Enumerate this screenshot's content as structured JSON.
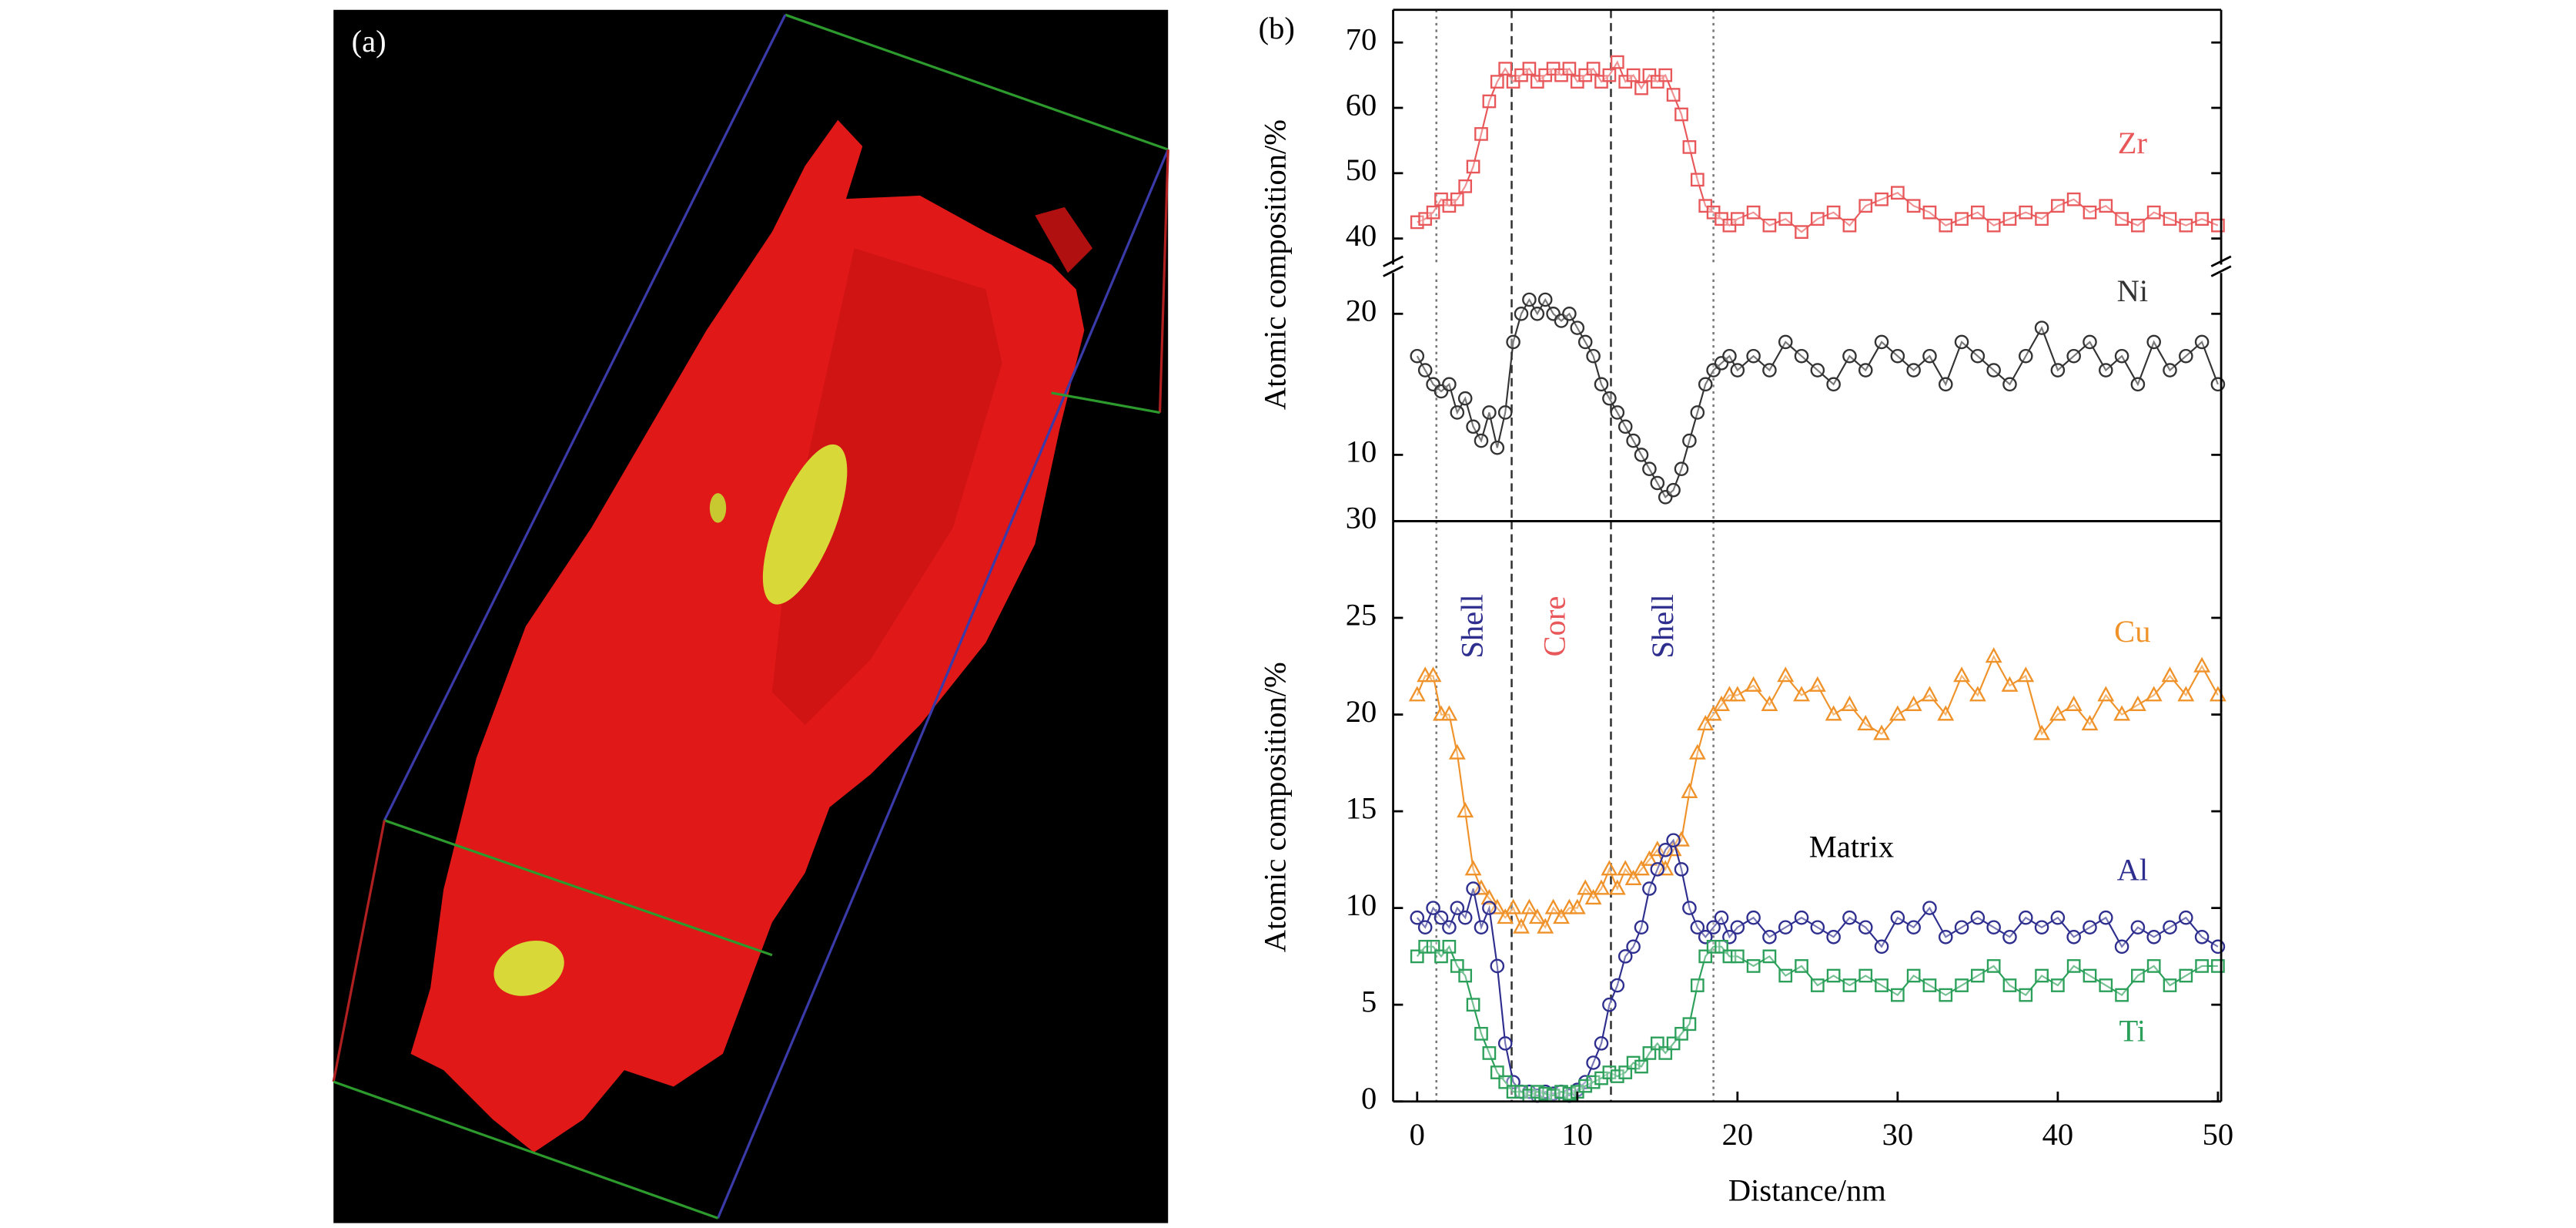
{
  "panel_a": {
    "label": "(a)"
  },
  "panel_b": {
    "label": "(b)"
  },
  "chart_data": [
    {
      "type": "line",
      "ylabel": "Atomic composition/%",
      "x": [
        0,
        0.5,
        1,
        1.5,
        2,
        2.5,
        3,
        3.5,
        4,
        4.5,
        5,
        5.5,
        6,
        6.5,
        7,
        7.5,
        8,
        8.5,
        9,
        9.5,
        10,
        10.5,
        11,
        11.5,
        12,
        12.5,
        13,
        13.5,
        14,
        14.5,
        15,
        15.5,
        16,
        16.5,
        17,
        17.5,
        18,
        18.5,
        19,
        19.5,
        20,
        21,
        22,
        23,
        24,
        25,
        26,
        27,
        28,
        29,
        30,
        31,
        32,
        33,
        34,
        35,
        36,
        37,
        38,
        39,
        40,
        41,
        42,
        43,
        44,
        45,
        46,
        47,
        48,
        49,
        50
      ],
      "xlim": [
        -1.5,
        50.2
      ],
      "ylim": [
        36,
        75
      ],
      "yticks": [
        40,
        50,
        60,
        70
      ],
      "vlines": [
        1.2,
        5.9,
        12.1,
        18.5
      ],
      "vline_styles": [
        "dotted",
        "dashed",
        "dashed",
        "dotted"
      ],
      "series": [
        {
          "name": "Zr",
          "color": "#e8585a",
          "marker": "square",
          "values": [
            42.5,
            43,
            44,
            46,
            45,
            46,
            48,
            51,
            56,
            61,
            64,
            66,
            64,
            65,
            66,
            64,
            65,
            66,
            65,
            66,
            64,
            65,
            66,
            64,
            65,
            67,
            64,
            65,
            63,
            65,
            64,
            65,
            62,
            59,
            54,
            49,
            45,
            44,
            43,
            42,
            43,
            44,
            42,
            43,
            41,
            43,
            44,
            42,
            45,
            46,
            47,
            45,
            44,
            42,
            43,
            44,
            42,
            43,
            44,
            43,
            45,
            46,
            44,
            45,
            43,
            42,
            44,
            43,
            42,
            43,
            42
          ]
        }
      ]
    },
    {
      "type": "line",
      "x": [
        0,
        0.5,
        1,
        1.5,
        2,
        2.5,
        3,
        3.5,
        4,
        4.5,
        5,
        5.5,
        6,
        6.5,
        7,
        7.5,
        8,
        8.5,
        9,
        9.5,
        10,
        10.5,
        11,
        11.5,
        12,
        12.5,
        13,
        13.5,
        14,
        14.5,
        15,
        15.5,
        16,
        16.5,
        17,
        17.5,
        18,
        18.5,
        19,
        19.5,
        20,
        21,
        22,
        23,
        24,
        25,
        26,
        27,
        28,
        29,
        30,
        31,
        32,
        33,
        34,
        35,
        36,
        37,
        38,
        39,
        40,
        41,
        42,
        43,
        44,
        45,
        46,
        47,
        48,
        49,
        50
      ],
      "xlim": [
        -1.5,
        50.2
      ],
      "ylim": [
        5.3,
        22.9
      ],
      "yticks": [
        10,
        20
      ],
      "vlines": [
        1.2,
        5.9,
        12.1,
        18.5
      ],
      "vline_styles": [
        "dotted",
        "dashed",
        "dashed",
        "dotted"
      ],
      "series": [
        {
          "name": "Ni",
          "color": "#333333",
          "marker": "circle",
          "values": [
            17,
            16,
            15,
            14.5,
            15,
            13,
            14,
            12,
            11,
            13,
            10.5,
            13,
            18,
            20,
            21,
            20,
            21,
            20,
            19.5,
            20,
            19,
            18,
            17,
            15,
            14,
            13,
            12,
            11,
            10,
            9,
            8,
            7,
            7.5,
            9,
            11,
            13,
            15,
            16,
            16.5,
            17,
            16,
            17,
            16,
            18,
            17,
            16,
            15,
            17,
            16,
            18,
            17,
            16,
            17,
            15,
            18,
            17,
            16,
            15,
            17,
            19,
            16,
            17,
            18,
            16,
            17,
            15,
            18,
            16,
            17,
            18,
            15
          ]
        }
      ]
    },
    {
      "type": "line",
      "ylabel": "Atomic composition/%",
      "xlabel": "Distance/nm",
      "x": [
        0,
        0.5,
        1,
        1.5,
        2,
        2.5,
        3,
        3.5,
        4,
        4.5,
        5,
        5.5,
        6,
        6.5,
        7,
        7.5,
        8,
        8.5,
        9,
        9.5,
        10,
        10.5,
        11,
        11.5,
        12,
        12.5,
        13,
        13.5,
        14,
        14.5,
        15,
        15.5,
        16,
        16.5,
        17,
        17.5,
        18,
        18.5,
        19,
        19.5,
        20,
        21,
        22,
        23,
        24,
        25,
        26,
        27,
        28,
        29,
        30,
        31,
        32,
        33,
        34,
        35,
        36,
        37,
        38,
        39,
        40,
        41,
        42,
        43,
        44,
        45,
        46,
        47,
        48,
        49,
        50
      ],
      "xlim": [
        -1.5,
        50.2
      ],
      "ylim": [
        0,
        30
      ],
      "xticks": [
        0,
        10,
        20,
        30,
        40,
        50
      ],
      "yticks": [
        0,
        5,
        10,
        15,
        20,
        25,
        30
      ],
      "vlines": [
        1.2,
        5.9,
        12.1,
        18.5
      ],
      "vline_styles": [
        "dotted",
        "dashed",
        "dashed",
        "dotted"
      ],
      "annotations": [
        {
          "text": "Shell",
          "color": "#2e2e8f"
        },
        {
          "text": "Core",
          "color": "#e8585a"
        },
        {
          "text": "Shell",
          "color": "#2e2e8f"
        },
        {
          "text": "Matrix",
          "color": "#000000"
        }
      ],
      "series": [
        {
          "name": "Cu",
          "color": "#f0922a",
          "marker": "triangle",
          "values": [
            21,
            22,
            22,
            20,
            20,
            18,
            15,
            12,
            11,
            10.5,
            10,
            9.5,
            10,
            9,
            10,
            9.5,
            9,
            10,
            9.5,
            10,
            10,
            11,
            10.5,
            11,
            12,
            11,
            12,
            11.5,
            12,
            12.5,
            13,
            12,
            13,
            13.5,
            16,
            18,
            19.5,
            20,
            20.5,
            21,
            21,
            21.5,
            20.5,
            22,
            21,
            21.5,
            20,
            20.5,
            19.5,
            19,
            20,
            20.5,
            21,
            20,
            22,
            21,
            23,
            21.5,
            22,
            19,
            20,
            20.5,
            19.5,
            21,
            20,
            20.5,
            21,
            22,
            21,
            22.5,
            21
          ]
        },
        {
          "name": "Al",
          "color": "#2e2e8f",
          "marker": "circle",
          "values": [
            9.5,
            9,
            10,
            9.5,
            9,
            10,
            9.5,
            11,
            9,
            10,
            7,
            3,
            1,
            0.5,
            0.5,
            0.3,
            0.5,
            0.4,
            0.5,
            0.3,
            0.6,
            1,
            2,
            3,
            5,
            6,
            7.5,
            8,
            9,
            11,
            12,
            13,
            13.5,
            12,
            10,
            9,
            8.5,
            9,
            9.5,
            8.5,
            9,
            9.5,
            8.5,
            9,
            9.5,
            9,
            8.5,
            9.5,
            9,
            8,
            9.5,
            9,
            10,
            8.5,
            9,
            9.5,
            9,
            8.5,
            9.5,
            9,
            9.5,
            8.5,
            9,
            9.5,
            8,
            9,
            8.5,
            9,
            9.5,
            8.5,
            8
          ]
        },
        {
          "name": "Ti",
          "color": "#2ca05a",
          "marker": "square",
          "values": [
            7.5,
            8,
            8,
            7.5,
            8,
            7,
            6.5,
            5,
            3.5,
            2.5,
            1.5,
            1,
            0.5,
            0.5,
            0.3,
            0.5,
            0.4,
            0.3,
            0.5,
            0.4,
            0.5,
            0.8,
            1,
            1.2,
            1.5,
            1.3,
            1.5,
            2,
            1.8,
            2.5,
            3,
            2.5,
            3,
            3.5,
            4,
            6,
            7.5,
            8,
            8,
            7.5,
            7.5,
            7,
            7.5,
            6.5,
            7,
            6,
            6.5,
            6,
            6.5,
            6,
            5.5,
            6.5,
            6,
            5.5,
            6,
            6.5,
            7,
            6,
            5.5,
            6.5,
            6,
            7,
            6.5,
            6,
            5.5,
            6.5,
            7,
            6,
            6.5,
            7,
            7
          ]
        }
      ]
    }
  ]
}
